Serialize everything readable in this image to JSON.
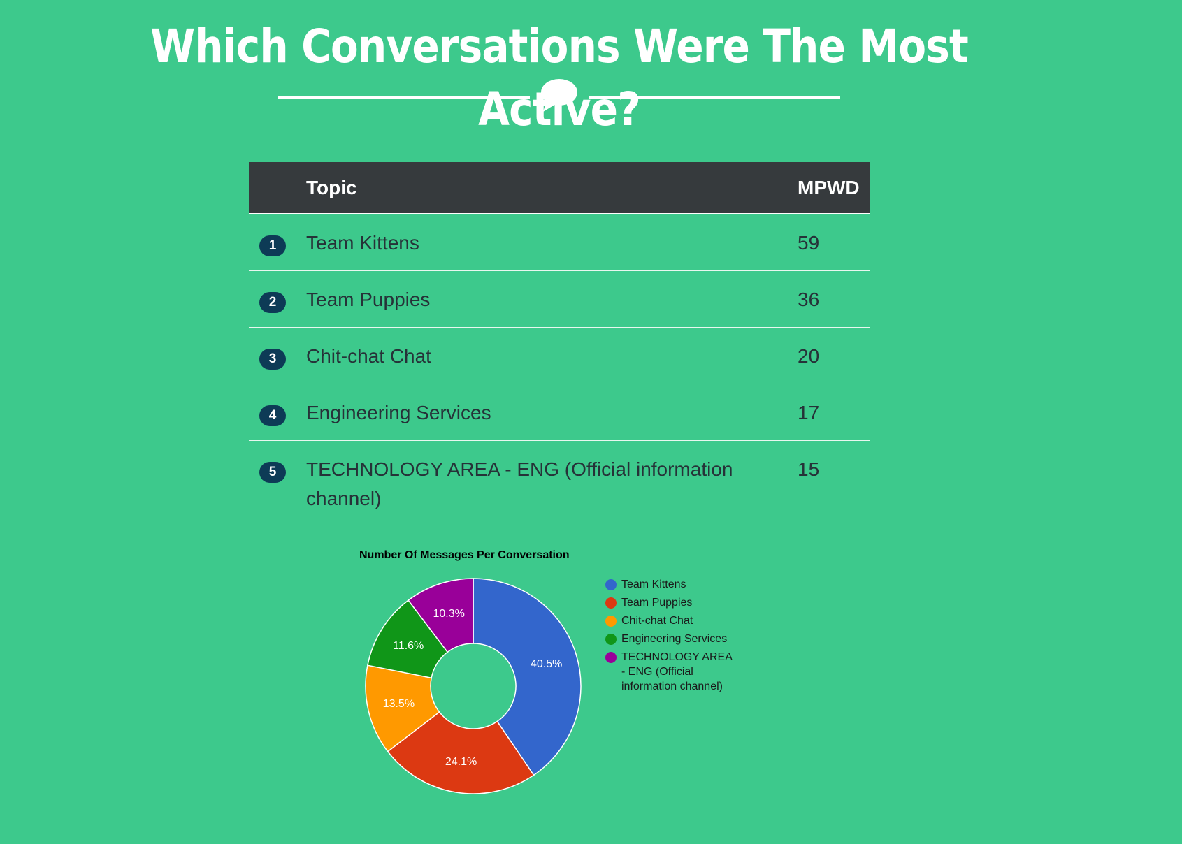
{
  "page": {
    "title": "Which Conversations Were The Most Active?",
    "divider_icon": "speech-bubble-icon"
  },
  "table": {
    "headers": {
      "rank": "",
      "topic": "Topic",
      "value": "MPWD"
    },
    "rows": [
      {
        "rank": "1",
        "topic": "Team Kittens",
        "value": "59"
      },
      {
        "rank": "2",
        "topic": "Team Puppies",
        "value": "36"
      },
      {
        "rank": "3",
        "topic": "Chit-chat Chat",
        "value": "20"
      },
      {
        "rank": "4",
        "topic": "Engineering Services",
        "value": "17"
      },
      {
        "rank": "5",
        "topic": "TECHNOLOGY AREA - ENG (Official information channel)",
        "value": "15"
      }
    ],
    "colors": {
      "header_bg": "#363a3d",
      "badge_bg": "#0d3b56"
    }
  },
  "chart_data": {
    "type": "pie",
    "donut": true,
    "title": "Number Of Messages Per Conversation",
    "categories": [
      "Team Kittens",
      "Team Puppies",
      "Chit-chat Chat",
      "Engineering Services",
      "TECHNOLOGY AREA - ENG (Official information channel)"
    ],
    "values": [
      40.5,
      24.1,
      13.5,
      11.6,
      10.3
    ],
    "labels": [
      "40.5%",
      "24.1%",
      "13.5%",
      "11.6%",
      "10.3%"
    ],
    "colors": [
      "#3366cc",
      "#dc3912",
      "#ff9900",
      "#109618",
      "#990099"
    ],
    "legend_position": "right"
  },
  "colors": {
    "background": "#3dc98c",
    "title": "#ffffff"
  }
}
